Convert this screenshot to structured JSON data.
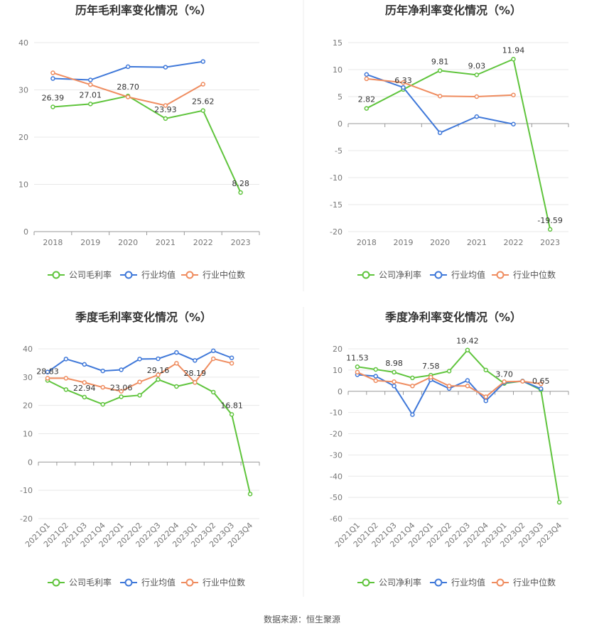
{
  "source": "数据来源：恒生聚源",
  "colors": {
    "company": "#5fc43c",
    "avg": "#3f78d9",
    "median": "#ef8c5f",
    "grid": "#e8e8e8",
    "axis": "#999999"
  },
  "chart_data": [
    {
      "type": "line",
      "title": "历年毛利率变化情况（%）",
      "categories": [
        "2018",
        "2019",
        "2020",
        "2021",
        "2022",
        "2023"
      ],
      "ylim": [
        0,
        40
      ],
      "yticks": [
        0,
        10,
        20,
        30,
        40
      ],
      "rotate_labels": false,
      "legend": "bottom",
      "series": [
        {
          "name": "公司毛利率",
          "color": "#5fc43c",
          "values": [
            26.39,
            27.01,
            28.7,
            23.93,
            25.62,
            8.28
          ],
          "labels": [
            "26.39",
            "27.01",
            "28.70",
            "23.93",
            "25.62",
            "8.28"
          ]
        },
        {
          "name": "行业均值",
          "color": "#3f78d9",
          "values": [
            32.4,
            32.1,
            34.9,
            34.8,
            36.0,
            null
          ],
          "labels": []
        },
        {
          "name": "行业中位数",
          "color": "#ef8c5f",
          "values": [
            33.6,
            31.1,
            28.5,
            26.7,
            31.2,
            null
          ],
          "labels": []
        }
      ]
    },
    {
      "type": "line",
      "title": "历年净利率变化情况（%）",
      "categories": [
        "2018",
        "2019",
        "2020",
        "2021",
        "2022",
        "2023"
      ],
      "ylim": [
        -20,
        15
      ],
      "yticks": [
        -20,
        -15,
        -10,
        -5,
        0,
        5,
        10,
        15
      ],
      "rotate_labels": false,
      "legend": "bottom",
      "series": [
        {
          "name": "公司净利率",
          "color": "#5fc43c",
          "values": [
            2.82,
            6.33,
            9.81,
            9.03,
            11.94,
            -19.59
          ],
          "labels": [
            "2.82",
            "6.33",
            "9.81",
            "9.03",
            "11.94",
            "-19.59"
          ]
        },
        {
          "name": "行业均值",
          "color": "#3f78d9",
          "values": [
            9.1,
            6.7,
            -1.7,
            1.3,
            -0.1,
            null
          ],
          "labels": []
        },
        {
          "name": "行业中位数",
          "color": "#ef8c5f",
          "values": [
            8.3,
            7.6,
            5.1,
            5.0,
            5.3,
            null
          ],
          "labels": []
        }
      ]
    },
    {
      "type": "line",
      "title": "季度毛利率变化情况（%）",
      "categories": [
        "2021Q1",
        "2021Q2",
        "2021Q3",
        "2021Q4",
        "2022Q1",
        "2022Q2",
        "2022Q3",
        "2022Q4",
        "2023Q1",
        "2023Q2",
        "2023Q3",
        "2023Q4"
      ],
      "ylim": [
        -20,
        40
      ],
      "yticks": [
        -20,
        -10,
        0,
        10,
        20,
        30,
        40
      ],
      "rotate_labels": true,
      "legend": "bottom",
      "series": [
        {
          "name": "公司毛利率",
          "color": "#5fc43c",
          "values": [
            28.83,
            25.6,
            22.94,
            20.4,
            23.06,
            23.6,
            29.16,
            26.7,
            28.19,
            24.7,
            16.81,
            -11.3
          ],
          "labels": [
            "28.83",
            null,
            "22.94",
            null,
            "23.06",
            null,
            "29.16",
            null,
            "28.19",
            null,
            "16.81",
            null
          ]
        },
        {
          "name": "行业均值",
          "color": "#3f78d9",
          "values": [
            31.8,
            36.4,
            34.5,
            32.2,
            32.6,
            36.4,
            36.5,
            38.7,
            35.9,
            39.3,
            36.8,
            null
          ],
          "labels": []
        },
        {
          "name": "行业中位数",
          "color": "#ef8c5f",
          "values": [
            29.6,
            29.6,
            28.1,
            26.4,
            25.0,
            28.3,
            30.8,
            34.9,
            28.1,
            36.5,
            34.9,
            null
          ],
          "labels": []
        }
      ]
    },
    {
      "type": "line",
      "title": "季度净利率变化情况（%）",
      "categories": [
        "2021Q1",
        "2021Q2",
        "2021Q3",
        "2021Q4",
        "2022Q1",
        "2022Q2",
        "2022Q3",
        "2022Q4",
        "2023Q1",
        "2023Q2",
        "2023Q3",
        "2023Q4"
      ],
      "ylim": [
        -60,
        20
      ],
      "yticks": [
        -60,
        -50,
        -40,
        -30,
        -20,
        -10,
        0,
        10,
        20
      ],
      "rotate_labels": true,
      "legend": "bottom",
      "series": [
        {
          "name": "公司净利率",
          "color": "#5fc43c",
          "values": [
            11.53,
            10.3,
            8.98,
            6.3,
            7.58,
            9.5,
            19.42,
            10.0,
            3.7,
            4.8,
            0.65,
            -52.3
          ],
          "labels": [
            "11.53",
            null,
            "8.98",
            null,
            "7.58",
            null,
            "19.42",
            null,
            "3.70",
            null,
            "0.65",
            null
          ]
        },
        {
          "name": "行业均值",
          "color": "#3f78d9",
          "values": [
            7.8,
            7.1,
            2.5,
            -11.0,
            5.4,
            1.3,
            5.1,
            -4.5,
            4.1,
            4.8,
            1.2,
            null
          ],
          "labels": []
        },
        {
          "name": "行业中位数",
          "color": "#ef8c5f",
          "values": [
            9.0,
            5.0,
            4.5,
            2.5,
            6.6,
            2.5,
            2.5,
            -2.6,
            4.5,
            4.7,
            3.5,
            null
          ],
          "labels": []
        }
      ]
    }
  ]
}
